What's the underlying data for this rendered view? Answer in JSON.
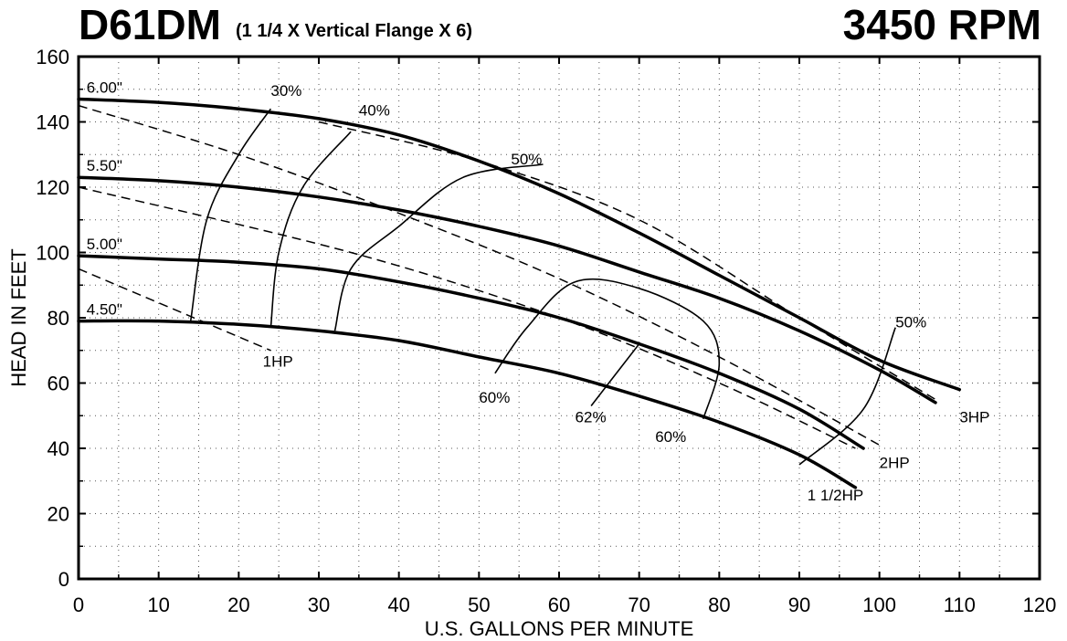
{
  "header": {
    "model": "D61DM",
    "subtitle": "(1 1/4 X Vertical Flange X 6)",
    "rpm": "3450 RPM"
  },
  "chart_data": {
    "type": "line",
    "title": "D61DM (1 1/4 X Vertical Flange X 6)",
    "xlabel": "U.S. GALLONS PER MINUTE",
    "ylabel": "HEAD IN FEET",
    "xlim": [
      0,
      120
    ],
    "ylim": [
      0,
      160
    ],
    "xticks": [
      0,
      10,
      20,
      30,
      40,
      50,
      60,
      70,
      80,
      90,
      100,
      110,
      120
    ],
    "yticks": [
      0,
      20,
      40,
      60,
      80,
      100,
      120,
      140,
      160
    ],
    "grid": "dotted",
    "impeller_curves": [
      {
        "name": "6.00\"",
        "points": [
          [
            0,
            147
          ],
          [
            10,
            146
          ],
          [
            20,
            144
          ],
          [
            30,
            141
          ],
          [
            40,
            136
          ],
          [
            50,
            128
          ],
          [
            60,
            118
          ],
          [
            70,
            106
          ],
          [
            80,
            93
          ],
          [
            90,
            80
          ],
          [
            100,
            67
          ],
          [
            110,
            58
          ]
        ],
        "label_at": [
          1,
          149
        ]
      },
      {
        "name": "5.50\"",
        "points": [
          [
            0,
            123
          ],
          [
            10,
            122
          ],
          [
            20,
            120
          ],
          [
            30,
            117
          ],
          [
            40,
            113
          ],
          [
            50,
            108
          ],
          [
            60,
            102
          ],
          [
            70,
            94
          ],
          [
            80,
            86
          ],
          [
            90,
            76
          ],
          [
            100,
            64
          ],
          [
            107,
            54
          ]
        ],
        "label_at": [
          1,
          125
        ]
      },
      {
        "name": "5.00\"",
        "points": [
          [
            0,
            99
          ],
          [
            10,
            98
          ],
          [
            20,
            97
          ],
          [
            30,
            95
          ],
          [
            40,
            91
          ],
          [
            50,
            86
          ],
          [
            60,
            80
          ],
          [
            70,
            72
          ],
          [
            80,
            63
          ],
          [
            90,
            52
          ],
          [
            98,
            40
          ]
        ],
        "label_at": [
          1,
          101
        ]
      },
      {
        "name": "4.50\"",
        "points": [
          [
            0,
            79
          ],
          [
            10,
            79
          ],
          [
            20,
            78
          ],
          [
            30,
            76
          ],
          [
            40,
            73
          ],
          [
            50,
            68
          ],
          [
            60,
            63
          ],
          [
            70,
            56
          ],
          [
            80,
            48
          ],
          [
            90,
            38
          ],
          [
            97,
            28
          ]
        ],
        "label_at": [
          1,
          81
        ]
      }
    ],
    "horsepower_lines": [
      {
        "name": "1HP",
        "points": [
          [
            0,
            95
          ],
          [
            24,
            70
          ]
        ],
        "label_at": [
          23,
          65
        ]
      },
      {
        "name": "1 1/2HP",
        "points": [
          [
            0,
            120
          ],
          [
            34,
            100
          ],
          [
            60,
            80
          ],
          [
            80,
            60
          ],
          [
            97,
            40
          ]
        ],
        "label_at": [
          91,
          24
        ]
      },
      {
        "name": "2HP",
        "points": [
          [
            0,
            145
          ],
          [
            20,
            130
          ],
          [
            40,
            112
          ],
          [
            60,
            92
          ],
          [
            80,
            68
          ],
          [
            100,
            41
          ]
        ],
        "label_at": [
          100,
          34
        ]
      },
      {
        "name": "3HP",
        "points": [
          [
            30,
            140
          ],
          [
            50,
            128
          ],
          [
            70,
            110
          ],
          [
            90,
            80
          ],
          [
            107,
            55
          ]
        ],
        "label_at": [
          110,
          48
        ]
      }
    ],
    "efficiency_curves": [
      {
        "name": "30%",
        "points": [
          [
            14,
            79
          ],
          [
            16,
            110
          ],
          [
            20,
            130
          ],
          [
            24,
            144
          ]
        ],
        "label_at": [
          24,
          148
        ]
      },
      {
        "name": "40%",
        "points": [
          [
            24,
            77
          ],
          [
            25,
            100
          ],
          [
            28,
            120
          ],
          [
            34,
            137
          ]
        ],
        "label_at": [
          35,
          142
        ]
      },
      {
        "name": "50%",
        "points": [
          [
            32,
            76
          ],
          [
            34,
            95
          ],
          [
            40,
            108
          ],
          [
            48,
            123
          ],
          [
            58,
            127
          ]
        ],
        "label_at": [
          54,
          127
        ]
      },
      {
        "name": "60%",
        "points": [
          [
            52,
            63
          ],
          [
            56,
            77
          ],
          [
            62,
            91
          ],
          [
            70,
            89
          ],
          [
            78,
            79
          ],
          [
            80,
            66
          ],
          [
            78,
            49
          ]
        ],
        "label_at": [
          50,
          54
        ]
      },
      {
        "name": "62%",
        "points": [
          [
            64,
            53
          ],
          [
            70,
            72
          ]
        ],
        "label_at": [
          62,
          48
        ]
      },
      {
        "name": "60%",
        "points": [],
        "label_at": [
          72,
          42
        ]
      },
      {
        "name": "50%",
        "points": [
          [
            90,
            35
          ],
          [
            98,
            52
          ],
          [
            102,
            77
          ]
        ],
        "label_at": [
          102,
          77
        ]
      }
    ]
  }
}
